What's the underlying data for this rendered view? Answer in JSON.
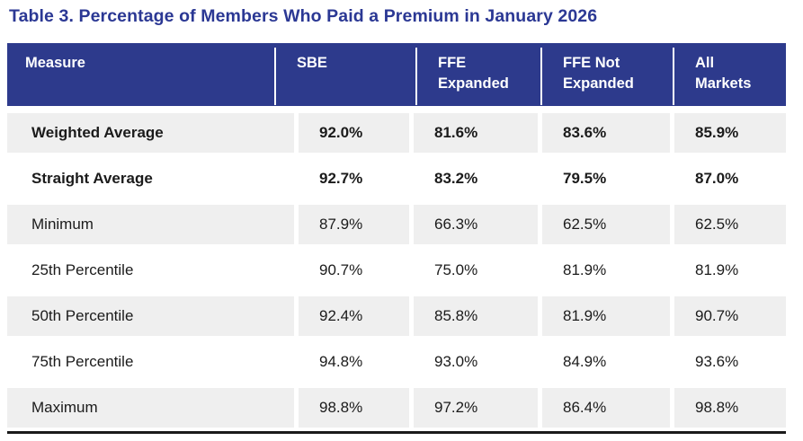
{
  "title": "Table 3. Percentage of Members Who Paid a Premium in January 2026",
  "colors": {
    "title_text": "#2b3894",
    "header_background": "#2d3a8c",
    "header_text": "#ffffff",
    "alt_row_background": "#efefef",
    "body_text": "#1b1b1b",
    "bottom_rule": "#1a1a1a"
  },
  "table": {
    "headers": {
      "measure": "Measure",
      "sbe": "SBE",
      "ffe_expanded": "FFE\nExpanded",
      "ffe_not_expanded": "FFE Not\nExpanded",
      "all_markets": "All\nMarkets"
    },
    "rows": [
      {
        "measure": "Weighted Average",
        "values": [
          "92.0%",
          "81.6%",
          "83.6%",
          "85.9%"
        ]
      },
      {
        "measure": "Straight Average",
        "values": [
          "92.7%",
          "83.2%",
          "79.5%",
          "87.0%"
        ]
      },
      {
        "measure": "Minimum",
        "values": [
          "87.9%",
          "66.3%",
          "62.5%",
          "62.5%"
        ]
      },
      {
        "measure": "25th Percentile",
        "values": [
          "90.7%",
          "75.0%",
          "81.9%",
          "81.9%"
        ]
      },
      {
        "measure": "50th Percentile",
        "values": [
          "92.4%",
          "85.8%",
          "81.9%",
          "90.7%"
        ]
      },
      {
        "measure": "75th Percentile",
        "values": [
          "94.8%",
          "93.0%",
          "84.9%",
          "93.6%"
        ]
      },
      {
        "measure": "Maximum",
        "values": [
          "98.8%",
          "97.2%",
          "86.4%",
          "98.8%"
        ]
      }
    ]
  }
}
